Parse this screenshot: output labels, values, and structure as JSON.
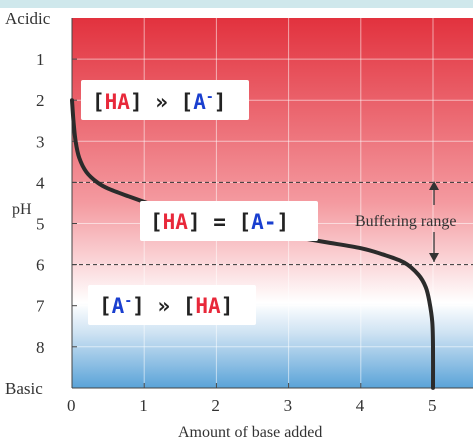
{
  "chart_data": {
    "type": "line",
    "xlabel": "Amount of base added",
    "ylabel": "pH",
    "x_ticks": [
      "0",
      "1",
      "2",
      "3",
      "4",
      "5"
    ],
    "y_ticks": [
      "1",
      "2",
      "3",
      "4",
      "5",
      "6",
      "7",
      "8"
    ],
    "y_top_label": "Acidic",
    "y_bottom_label": "Basic",
    "xlim": [
      0,
      5.5
    ],
    "ylim": [
      0,
      9
    ],
    "grid": true,
    "background_gradient": "red (acidic) to white to blue (basic)",
    "series": [
      {
        "x": [
          0,
          0.02,
          0.05,
          0.1,
          0.2,
          0.35,
          0.5,
          0.8,
          1.2,
          1.6,
          2.0,
          2.5,
          3.0,
          3.5,
          4.0,
          4.3,
          4.6,
          4.8,
          4.9,
          4.95,
          4.99,
          5.0,
          5.0
        ],
        "y": [
          2.0,
          2.5,
          3.0,
          3.4,
          3.75,
          4.0,
          4.15,
          4.35,
          4.6,
          4.85,
          5.0,
          5.15,
          5.3,
          5.45,
          5.6,
          5.75,
          5.95,
          6.25,
          6.55,
          6.9,
          7.4,
          8.0,
          9.0
        ],
        "color": "#2b2b2b"
      }
    ],
    "reference_lines": [
      {
        "orientation": "horizontal",
        "y": 4,
        "style": "dashed"
      },
      {
        "orientation": "horizontal",
        "y": 6,
        "style": "dashed"
      }
    ],
    "annotations": {
      "buffering": "Buffering range",
      "box_top": {
        "a": "[",
        "b": "HA",
        "c": "] ",
        "d": "»",
        "e": " [",
        "f": "A",
        "g": "-",
        "h": "]"
      },
      "box_mid": {
        "a": "[",
        "b": "HA",
        "c": "] = [",
        "d": "A-",
        "e": "]"
      },
      "box_bottom": {
        "a": "[",
        "b": "A",
        "c": "-",
        "d": "] ",
        "e": "»",
        "f": " [",
        "g": "HA",
        "h": "]"
      }
    },
    "colors": {
      "ha": "#e8283a",
      "a": "#1a3fcf",
      "bracket": "#222222"
    }
  }
}
